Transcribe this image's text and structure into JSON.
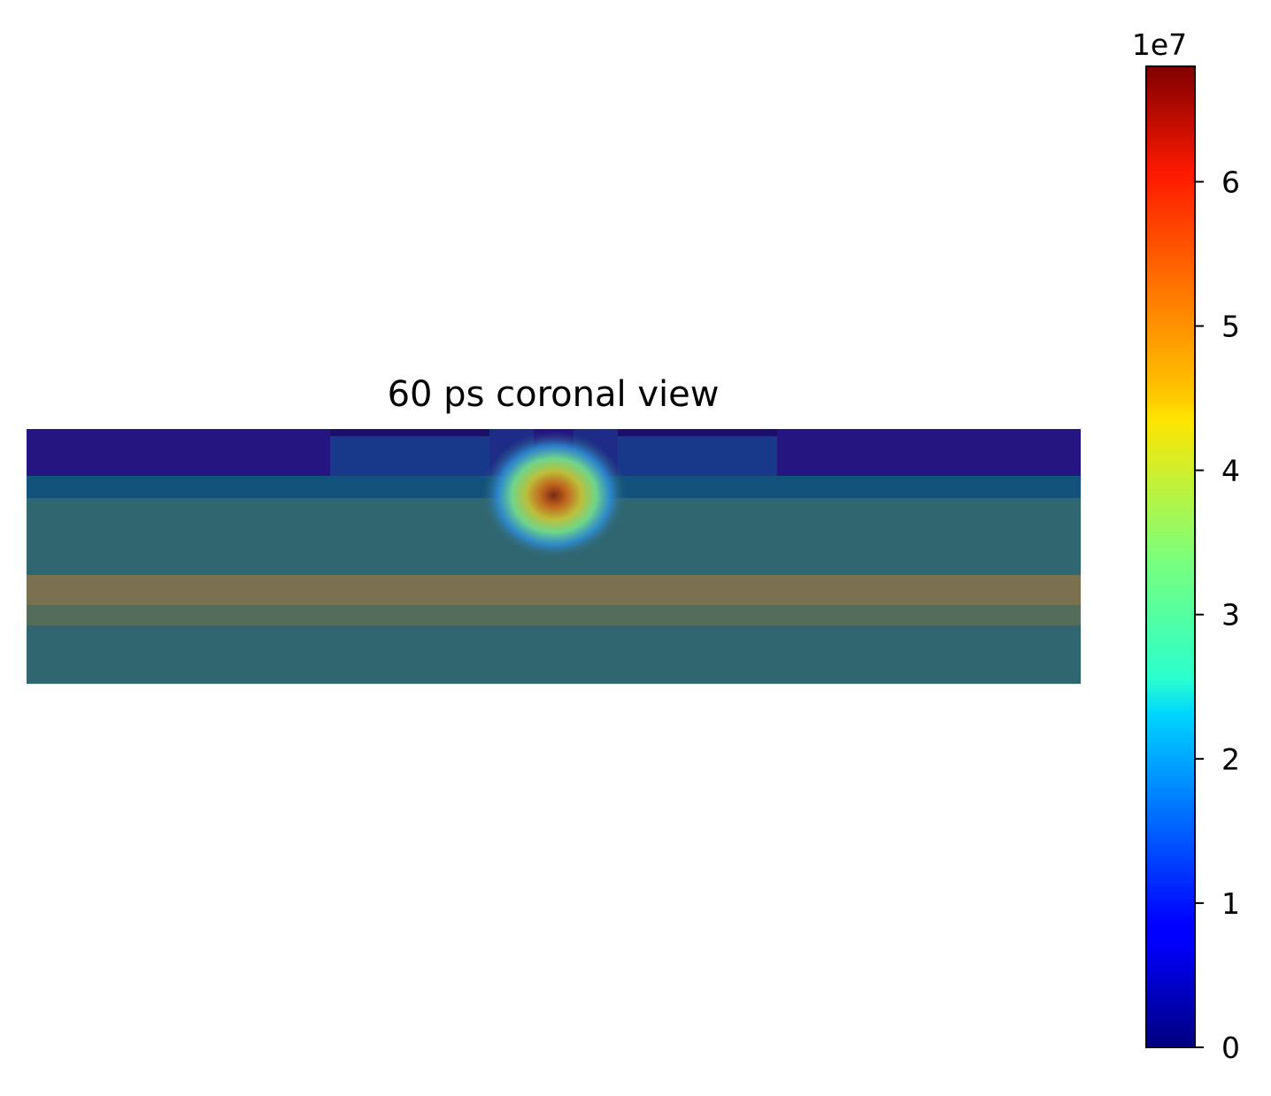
{
  "chart_data": {
    "type": "heatmap",
    "title": "60 ps coronal view",
    "xlabel": "",
    "ylabel": "",
    "axes": "off",
    "colormap": "jet",
    "colorbar": {
      "min": 0,
      "max": 68000000,
      "offset_label": "1e7",
      "ticks": [
        0,
        1,
        2,
        3,
        4,
        5,
        6
      ],
      "tick_labels": [
        "0",
        "1",
        "2",
        "3",
        "4",
        "5",
        "6"
      ]
    },
    "hotspot": {
      "peak_value": 68000000,
      "location": "top-center, just below the top layer"
    },
    "colors": {
      "top_layer": "#251581",
      "upper_band": "#13527a",
      "tissue": "#30666f",
      "tan_band": "#7b7050",
      "green_band": "#546c5a",
      "insert": "#18398a",
      "insert_dark": "#1e2c88"
    }
  }
}
